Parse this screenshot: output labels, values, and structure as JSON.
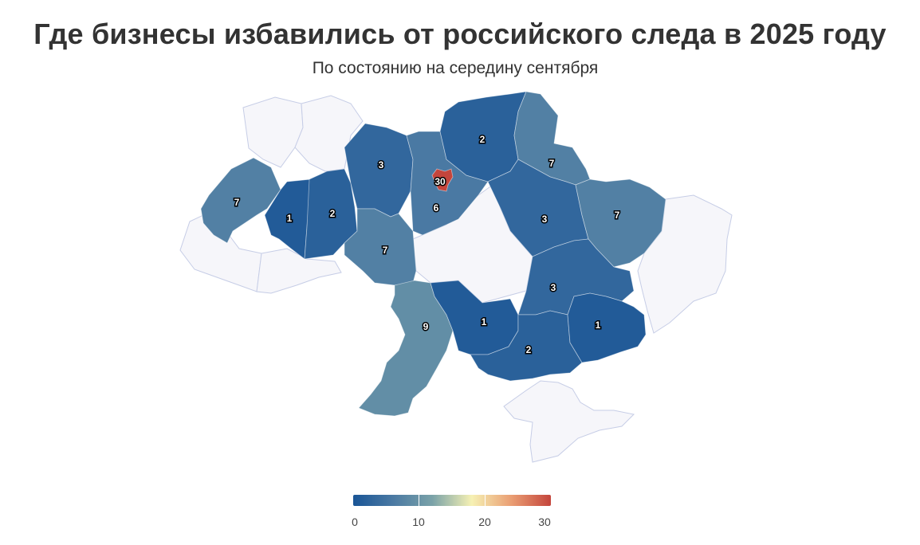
{
  "title": "Где бизнесы избавились от российского следа в 2025 году",
  "subtitle": "По состоянию на середину сентября",
  "colors": {
    "scale": [
      "#1a5596",
      "#4a79a3",
      "#7aa2a8",
      "#f6f1b4",
      "#ea9e73",
      "#c4453c"
    ],
    "no_data": "#f6f6fa",
    "border": "#c6cde6"
  },
  "regions": [
    {
      "value": 7
    },
    {
      "value": 1
    },
    {
      "value": 2
    },
    {
      "value": 3
    },
    {
      "value": 6
    },
    {
      "value": 30
    },
    {
      "value": 2
    },
    {
      "value": 7
    },
    {
      "value": 7
    },
    {
      "value": 3
    },
    {
      "value": 7
    },
    {
      "value": 3
    },
    {
      "value": 9
    },
    {
      "value": 1
    },
    {
      "value": 2
    },
    {
      "value": 1
    }
  ],
  "legend": {
    "min": 0,
    "max": 30,
    "ticks": [
      "0",
      "10",
      "20",
      "30"
    ]
  }
}
